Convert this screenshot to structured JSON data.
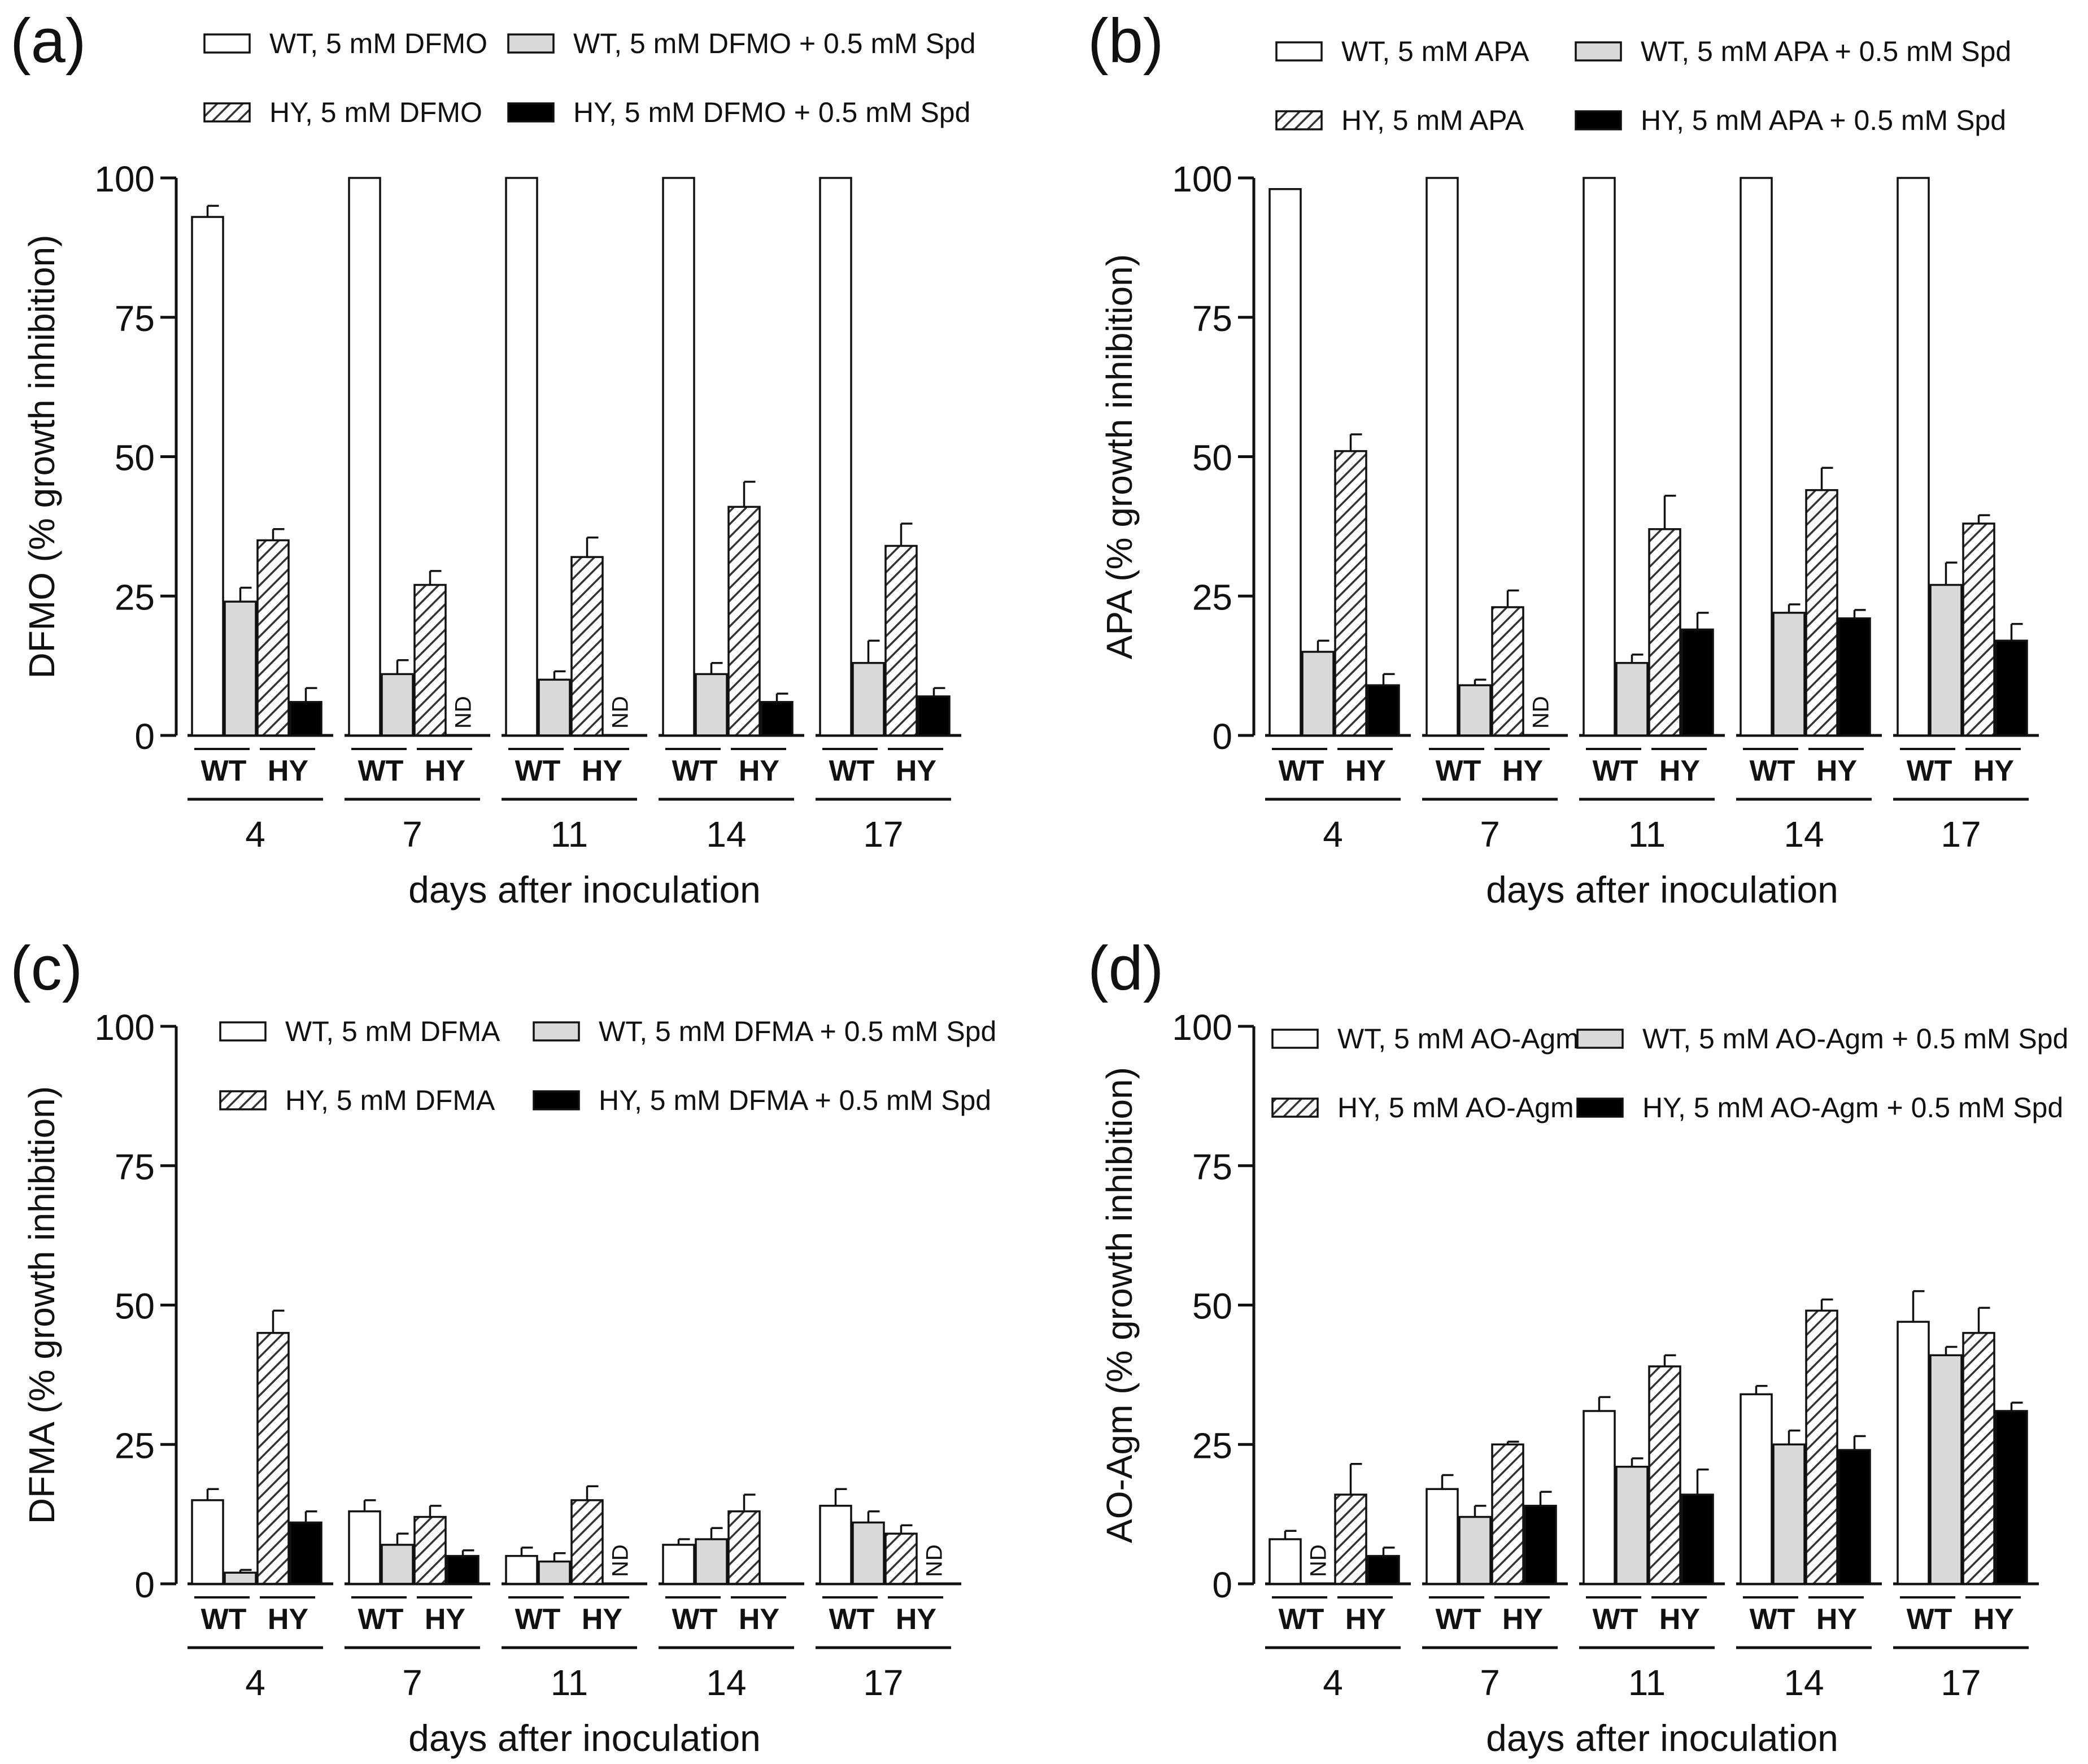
{
  "figure": {
    "x_axis_label": "days after inoculation",
    "group_labels": [
      "WT",
      "HY"
    ],
    "days": [
      "4",
      "7",
      "11",
      "14",
      "17"
    ],
    "nd_label": "ND",
    "colors": {
      "wt": "#ffffff",
      "wt_spd": "#d9d9d9",
      "hy_hatch": "#333333",
      "hy_spd": "#000000",
      "axis": "#111111"
    }
  },
  "chart_data": [
    {
      "panel": "(a)",
      "type": "bar",
      "ylabel": "DFMO (% growth inhibition)",
      "ylim": [
        0,
        100
      ],
      "yticks": [
        "0",
        "25",
        "50",
        "75",
        "100"
      ],
      "categories": [
        "4",
        "7",
        "11",
        "14",
        "17"
      ],
      "legend": [
        "WT, 5 mM DFMO",
        "WT, 5 mM DFMO + 0.5 mM Spd",
        "HY, 5 mM DFMO",
        "HY, 5 mM DFMO + 0.5 mM Spd"
      ],
      "series": [
        {
          "name": "WT, 5 mM DFMO",
          "values": [
            93,
            100,
            100,
            100,
            100
          ],
          "errors": [
            2,
            0,
            0,
            0,
            0
          ]
        },
        {
          "name": "WT, 5 mM DFMO + 0.5 mM Spd",
          "values": [
            24,
            11,
            10,
            11,
            13
          ],
          "errors": [
            2.5,
            2.5,
            1.5,
            2,
            4
          ]
        },
        {
          "name": "HY, 5 mM DFMO",
          "values": [
            35,
            27,
            32,
            41,
            34
          ],
          "errors": [
            2,
            2.5,
            3.5,
            4.5,
            4
          ]
        },
        {
          "name": "HY, 5 mM DFMO + 0.5 mM Spd",
          "values": [
            6,
            null,
            null,
            6,
            7
          ],
          "errors": [
            2.5,
            0,
            0,
            1.5,
            1.5
          ]
        }
      ]
    },
    {
      "panel": "(b)",
      "type": "bar",
      "ylabel": "APA (% growth inhibition)",
      "ylim": [
        0,
        100
      ],
      "yticks": [
        "0",
        "25",
        "50",
        "75",
        "100"
      ],
      "categories": [
        "4",
        "7",
        "11",
        "14",
        "17"
      ],
      "legend": [
        "WT, 5 mM APA",
        "WT, 5 mM APA + 0.5 mM Spd",
        "HY, 5 mM APA",
        "HY, 5 mM APA + 0.5 mM Spd"
      ],
      "series": [
        {
          "name": "WT, 5 mM APA",
          "values": [
            98,
            100,
            100,
            100,
            100
          ],
          "errors": [
            0,
            0,
            0,
            0,
            0
          ]
        },
        {
          "name": "WT, 5 mM APA + 0.5 mM Spd",
          "values": [
            15,
            9,
            13,
            22,
            27
          ],
          "errors": [
            2,
            1,
            1.5,
            1.5,
            4
          ]
        },
        {
          "name": "HY, 5 mM APA",
          "values": [
            51,
            23,
            37,
            44,
            38
          ],
          "errors": [
            3,
            3,
            6,
            4,
            1.5
          ]
        },
        {
          "name": "HY, 5 mM APA + 0.5 mM Spd",
          "values": [
            9,
            null,
            19,
            21,
            17
          ],
          "errors": [
            2,
            0,
            3,
            1.5,
            3
          ]
        }
      ]
    },
    {
      "panel": "(c)",
      "type": "bar",
      "ylabel": "DFMA (% growth inhibition)",
      "ylim": [
        0,
        100
      ],
      "yticks": [
        "0",
        "25",
        "50",
        "75",
        "100"
      ],
      "categories": [
        "4",
        "7",
        "11",
        "14",
        "17"
      ],
      "legend": [
        "WT, 5 mM DFMA",
        "WT, 5 mM DFMA + 0.5 mM Spd",
        "HY, 5 mM DFMA",
        "HY, 5 mM DFMA + 0.5 mM Spd"
      ],
      "series": [
        {
          "name": "WT, 5 mM DFMA",
          "values": [
            15,
            13,
            5,
            7,
            14
          ],
          "errors": [
            2,
            2,
            1.5,
            1,
            3
          ]
        },
        {
          "name": "WT, 5 mM DFMA + 0.5 mM Spd",
          "values": [
            2,
            7,
            4,
            8,
            11
          ],
          "errors": [
            0.5,
            2,
            1.5,
            2,
            2
          ]
        },
        {
          "name": "HY, 5 mM DFMA",
          "values": [
            45,
            12,
            15,
            13,
            9
          ],
          "errors": [
            4,
            2,
            2.5,
            3,
            1.5
          ]
        },
        {
          "name": "HY, 5 mM DFMA + 0.5 mM Spd",
          "values": [
            11,
            5,
            null,
            0,
            null
          ],
          "errors": [
            2,
            1,
            0,
            0,
            0
          ]
        }
      ]
    },
    {
      "panel": "(d)",
      "type": "bar",
      "ylabel": "AO-Agm (% growth inhibition)",
      "ylim": [
        0,
        100
      ],
      "yticks": [
        "0",
        "25",
        "50",
        "75",
        "100"
      ],
      "categories": [
        "4",
        "7",
        "11",
        "14",
        "17"
      ],
      "legend": [
        "WT, 5 mM AO-Agm",
        "WT, 5 mM AO-Agm + 0.5 mM Spd",
        "HY, 5 mM AO-Agm",
        "HY, 5 mM AO-Agm + 0.5 mM Spd"
      ],
      "series": [
        {
          "name": "WT, 5 mM AO-Agm",
          "values": [
            8,
            17,
            31,
            34,
            47
          ],
          "errors": [
            1.5,
            2.5,
            2.5,
            1.5,
            5.5
          ]
        },
        {
          "name": "WT, 5 mM AO-Agm + 0.5 mM Spd",
          "values": [
            null,
            12,
            21,
            25,
            41
          ],
          "errors": [
            0,
            2,
            1.5,
            2.5,
            1.5
          ]
        },
        {
          "name": "HY, 5 mM AO-Agm",
          "values": [
            16,
            25,
            39,
            49,
            45
          ],
          "errors": [
            5.5,
            0.5,
            2,
            2,
            4.5
          ]
        },
        {
          "name": "HY, 5 mM AO-Agm + 0.5 mM Spd",
          "values": [
            5,
            14,
            16,
            24,
            31
          ],
          "errors": [
            1.5,
            2.5,
            4.5,
            2.5,
            1.5
          ]
        }
      ]
    }
  ]
}
